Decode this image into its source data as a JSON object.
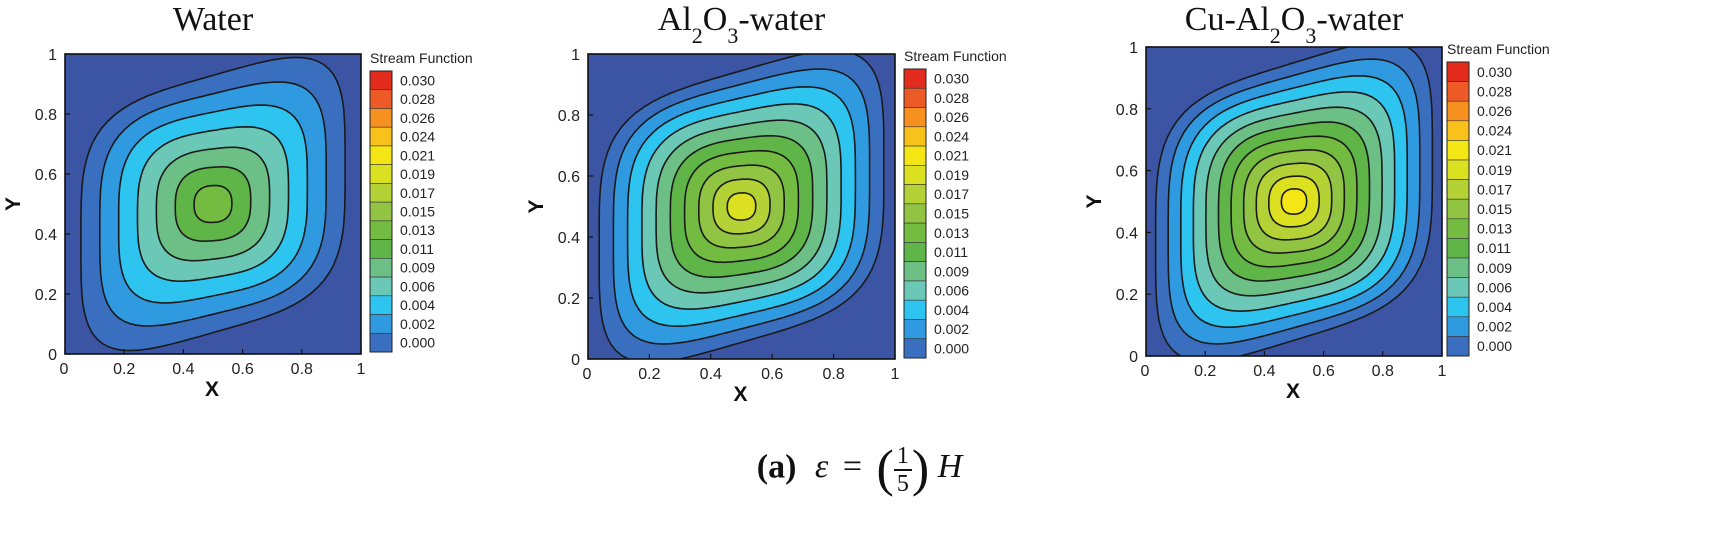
{
  "chart_data": [
    {
      "type": "contour",
      "title": "Water",
      "xlabel": "X",
      "ylabel": "Y",
      "xlim": [
        0,
        1
      ],
      "ylim": [
        0,
        1
      ],
      "x_ticks": [
        "0",
        "0.2",
        "0.4",
        "0.6",
        "0.8",
        "1"
      ],
      "y_ticks": [
        "0",
        "0.2",
        "0.4",
        "0.6",
        "0.8",
        "1"
      ],
      "colorbar_title": "Stream Function",
      "colorbar_labels": [
        "0.030",
        "0.028",
        "0.026",
        "0.024",
        "0.021",
        "0.019",
        "0.017",
        "0.015",
        "0.013",
        "0.011",
        "0.009",
        "0.006",
        "0.004",
        "0.002",
        "0.000"
      ],
      "center": [
        0.5,
        0.5
      ],
      "max_level_index": 7,
      "contour_values": [
        0.002,
        0.004,
        0.006,
        0.009,
        0.011,
        0.013,
        0.015
      ]
    },
    {
      "type": "contour",
      "title": "Al2O3-water",
      "xlabel": "X",
      "ylabel": "Y",
      "xlim": [
        0,
        1
      ],
      "ylim": [
        0,
        1
      ],
      "x_ticks": [
        "0",
        "0.2",
        "0.4",
        "0.6",
        "0.8",
        "1"
      ],
      "y_ticks": [
        "0",
        "0.2",
        "0.4",
        "0.6",
        "0.8",
        "1"
      ],
      "colorbar_title": "Stream Function",
      "colorbar_labels": [
        "0.030",
        "0.028",
        "0.026",
        "0.024",
        "0.021",
        "0.019",
        "0.017",
        "0.015",
        "0.013",
        "0.011",
        "0.009",
        "0.006",
        "0.004",
        "0.002",
        "0.000"
      ],
      "center": [
        0.5,
        0.5
      ],
      "max_level_index": 10,
      "contour_values": [
        0.002,
        0.004,
        0.006,
        0.009,
        0.011,
        0.013,
        0.015,
        0.017,
        0.019,
        0.021
      ]
    },
    {
      "type": "contour",
      "title": "Cu-Al2O3-water",
      "xlabel": "X",
      "ylabel": "Y",
      "xlim": [
        0,
        1
      ],
      "ylim": [
        0,
        1
      ],
      "x_ticks": [
        "0",
        "0.2",
        "0.4",
        "0.6",
        "0.8",
        "1"
      ],
      "y_ticks": [
        "0",
        "0.2",
        "0.4",
        "0.6",
        "0.8",
        "1"
      ],
      "colorbar_title": "Stream Function",
      "colorbar_labels": [
        "0.030",
        "0.028",
        "0.026",
        "0.024",
        "0.021",
        "0.019",
        "0.017",
        "0.015",
        "0.013",
        "0.011",
        "0.009",
        "0.006",
        "0.004",
        "0.002",
        "0.000"
      ],
      "center": [
        0.5,
        0.5
      ],
      "max_level_index": 11,
      "contour_values": [
        0.002,
        0.004,
        0.006,
        0.009,
        0.011,
        0.013,
        0.015,
        0.017,
        0.019,
        0.021,
        0.024
      ]
    }
  ],
  "caption": {
    "label": "(a)",
    "symbol": "ε",
    "equals": "=",
    "frac_num": "1",
    "frac_den": "5",
    "variable": "H"
  },
  "colors": {
    "levels": [
      "#3b55a4",
      "#3a6fc0",
      "#2f9ae0",
      "#2ec4f0",
      "#6cc8b6",
      "#6cc085",
      "#5fb548",
      "#74bb41",
      "#90c442",
      "#b4d235",
      "#dbe020",
      "#f4e614",
      "#f8c21a",
      "#f6901f",
      "#ee5a25",
      "#e32b1e"
    ],
    "line": "#1a1a1a"
  }
}
